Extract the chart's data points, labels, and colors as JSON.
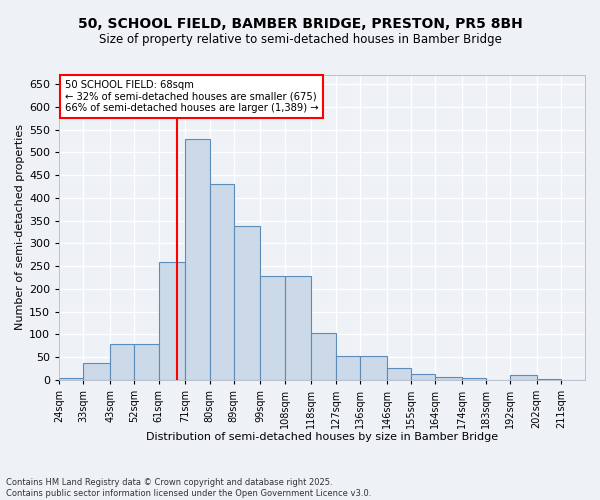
{
  "title_line1": "50, SCHOOL FIELD, BAMBER BRIDGE, PRESTON, PR5 8BH",
  "title_line2": "Size of property relative to semi-detached houses in Bamber Bridge",
  "xlabel": "Distribution of semi-detached houses by size in Bamber Bridge",
  "ylabel": "Number of semi-detached properties",
  "bin_labels": [
    "24sqm",
    "33sqm",
    "43sqm",
    "52sqm",
    "61sqm",
    "71sqm",
    "80sqm",
    "89sqm",
    "99sqm",
    "108sqm",
    "118sqm",
    "127sqm",
    "136sqm",
    "146sqm",
    "155sqm",
    "164sqm",
    "174sqm",
    "183sqm",
    "192sqm",
    "202sqm",
    "211sqm"
  ],
  "bin_edges": [
    24,
    33,
    43,
    52,
    61,
    71,
    80,
    89,
    99,
    108,
    118,
    127,
    136,
    146,
    155,
    164,
    174,
    183,
    192,
    202,
    211,
    220
  ],
  "bar_heights": [
    5,
    38,
    80,
    80,
    260,
    530,
    430,
    338,
    228,
    228,
    103,
    52,
    52,
    27,
    13,
    7,
    4,
    0,
    10,
    3,
    0
  ],
  "bar_color": "#ccd9e8",
  "bar_edge_color": "#5b8db8",
  "red_line_x": 68,
  "annotation_title": "50 SCHOOL FIELD: 68sqm",
  "annotation_line1": "← 32% of semi-detached houses are smaller (675)",
  "annotation_line2": "66% of semi-detached houses are larger (1,389) →",
  "ylim": [
    0,
    670
  ],
  "yticks": [
    0,
    50,
    100,
    150,
    200,
    250,
    300,
    350,
    400,
    450,
    500,
    550,
    600,
    650
  ],
  "footer_line1": "Contains HM Land Registry data © Crown copyright and database right 2025.",
  "footer_line2": "Contains public sector information licensed under the Open Government Licence v3.0.",
  "bg_color": "#eef2f7"
}
